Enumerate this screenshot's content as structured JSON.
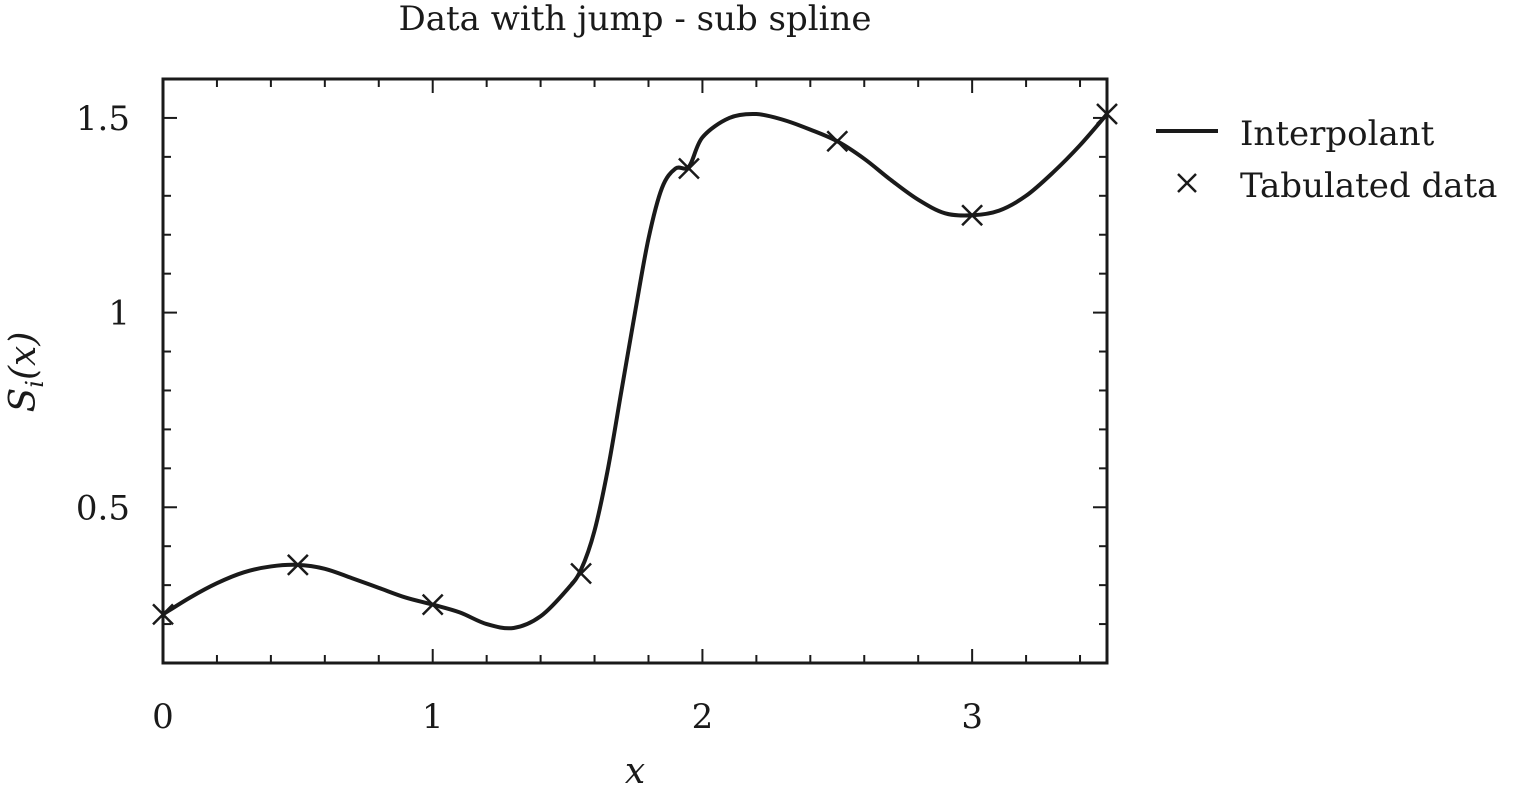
{
  "chart_data": {
    "type": "line",
    "title": "Data with jump - sub spline",
    "xlabel": "x",
    "ylabel": "S_i(x)",
    "xlim": [
      0,
      3.5
    ],
    "ylim": [
      0.1,
      1.6
    ],
    "xticks": [
      0,
      1,
      2,
      3
    ],
    "xtick_labels": [
      "0",
      "1",
      "2",
      "3"
    ],
    "yticks": [
      0.5,
      1,
      1.5
    ],
    "ytick_labels": [
      "0.5",
      "1",
      "1.5"
    ],
    "grid": false,
    "legend_position": "outside-right-top",
    "series": [
      {
        "name": "Interpolant",
        "kind": "line",
        "x": [
          0,
          0.1,
          0.2,
          0.3,
          0.4,
          0.5,
          0.6,
          0.7,
          0.8,
          0.9,
          1.0,
          1.1,
          1.2,
          1.3,
          1.4,
          1.5,
          1.55,
          1.6,
          1.65,
          1.7,
          1.75,
          1.8,
          1.85,
          1.9,
          1.95,
          2.0,
          2.1,
          2.2,
          2.3,
          2.4,
          2.5,
          2.6,
          2.7,
          2.8,
          2.9,
          3.0,
          3.1,
          3.2,
          3.3,
          3.4,
          3.5
        ],
        "y": [
          0.225,
          0.268,
          0.305,
          0.333,
          0.348,
          0.352,
          0.342,
          0.318,
          0.293,
          0.268,
          0.25,
          0.23,
          0.2,
          0.19,
          0.22,
          0.29,
          0.34,
          0.44,
          0.6,
          0.8,
          1.0,
          1.19,
          1.32,
          1.37,
          1.375,
          1.45,
          1.5,
          1.51,
          1.495,
          1.47,
          1.44,
          1.395,
          1.34,
          1.29,
          1.255,
          1.25,
          1.262,
          1.3,
          1.36,
          1.43,
          1.51
        ]
      },
      {
        "name": "Tabulated data",
        "kind": "markers",
        "marker": "x",
        "x": [
          0,
          0.5,
          1.0,
          1.55,
          1.95,
          2.5,
          3.0,
          3.5
        ],
        "y": [
          0.225,
          0.352,
          0.25,
          0.33,
          1.37,
          1.44,
          1.25,
          1.51
        ]
      }
    ]
  }
}
